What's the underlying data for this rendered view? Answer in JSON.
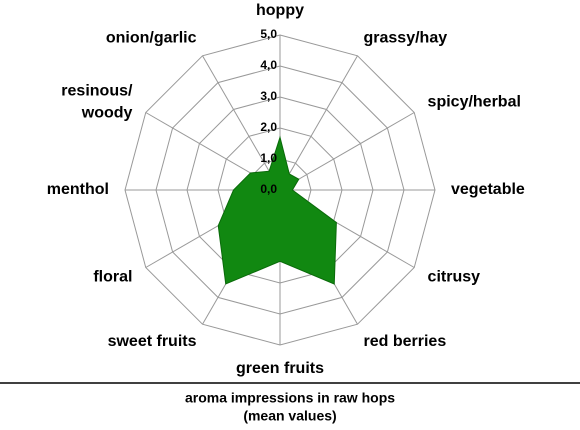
{
  "chart_data": {
    "type": "radar",
    "title": "aroma impressions in raw hops",
    "subtitle": "(mean values)",
    "categories": [
      "hoppy",
      "grassy/hay",
      "spicy/herbal",
      "vegetable",
      "citrusy",
      "red berries",
      "green fruits",
      "sweet fruits",
      "floral",
      "menthol",
      "resinous/\nwoody",
      "onion/garlic"
    ],
    "values": [
      1.7,
      0.6,
      0.7,
      0.4,
      2.1,
      3.5,
      2.3,
      3.5,
      2.3,
      1.5,
      1.1,
      0.7
    ],
    "color": "#118811",
    "ylim": [
      0,
      5
    ],
    "yticks": [
      {
        "value": 0,
        "label": "0,0"
      },
      {
        "value": 1,
        "label": "1,0"
      },
      {
        "value": 2,
        "label": "2,0"
      },
      {
        "value": 3,
        "label": "3,0"
      },
      {
        "value": 4,
        "label": "4,0"
      },
      {
        "value": 5,
        "label": "5,0"
      }
    ],
    "grid": true
  }
}
